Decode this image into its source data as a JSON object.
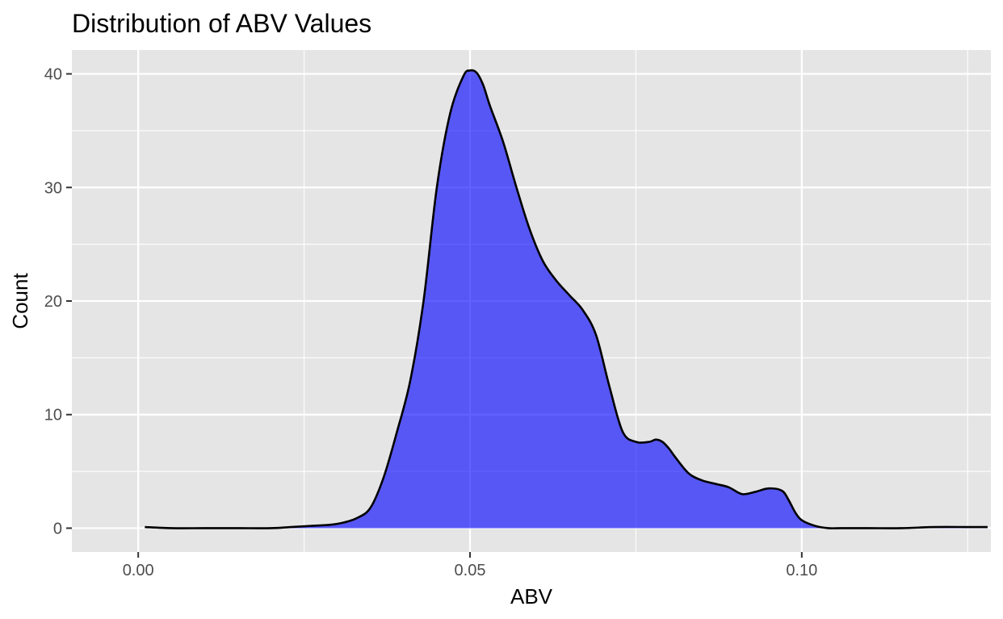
{
  "chart_data": {
    "type": "area",
    "title": "Distribution of ABV Values",
    "xlabel": "ABV",
    "ylabel": "Count",
    "xlim": [
      -0.01,
      0.1285
    ],
    "ylim": [
      -2.1,
      42.1
    ],
    "x_ticks": [
      0.0,
      0.05,
      0.1
    ],
    "x_tick_labels": [
      "0.00",
      "0.05",
      "0.10"
    ],
    "y_ticks": [
      0,
      10,
      20,
      30,
      40
    ],
    "y_tick_labels": [
      "0",
      "10",
      "20",
      "30",
      "40"
    ],
    "x_minor_ticks": [
      0.025,
      0.075,
      0.125
    ],
    "y_minor_ticks": [
      5,
      15,
      25,
      35
    ],
    "grid": true,
    "legend": "none",
    "colors": {
      "fill": "#0000ff",
      "fill_opacity": 0.62,
      "line": "#000000",
      "panel": "#e5e5e5",
      "grid": "#ffffff"
    },
    "series": [
      {
        "x": [
          0.001,
          0.005,
          0.01,
          0.015,
          0.02,
          0.023,
          0.026,
          0.029,
          0.031,
          0.033,
          0.035,
          0.037,
          0.039,
          0.041,
          0.043,
          0.045,
          0.047,
          0.049,
          0.05,
          0.051,
          0.052,
          0.053,
          0.055,
          0.057,
          0.059,
          0.061,
          0.063,
          0.065,
          0.067,
          0.069,
          0.071,
          0.073,
          0.075,
          0.077,
          0.078,
          0.079,
          0.08,
          0.081,
          0.083,
          0.085,
          0.087,
          0.089,
          0.091,
          0.093,
          0.095,
          0.097,
          0.098,
          0.099,
          0.1,
          0.102,
          0.104,
          0.106,
          0.11,
          0.115,
          0.12,
          0.125,
          0.128
        ],
        "values": [
          0.1,
          0.0,
          0.0,
          0.0,
          0.0,
          0.1,
          0.2,
          0.3,
          0.5,
          0.9,
          1.8,
          4.5,
          8.5,
          13.0,
          20.0,
          30.0,
          36.5,
          39.8,
          40.3,
          40.1,
          39.0,
          37.2,
          34.0,
          30.0,
          26.3,
          23.5,
          21.8,
          20.5,
          19.2,
          17.0,
          12.5,
          8.5,
          7.6,
          7.6,
          7.8,
          7.6,
          7.0,
          6.2,
          4.8,
          4.2,
          3.9,
          3.6,
          3.0,
          3.2,
          3.5,
          3.3,
          2.5,
          1.4,
          0.7,
          0.2,
          0.0,
          0.0,
          0.0,
          0.0,
          0.1,
          0.1,
          0.1
        ]
      }
    ]
  }
}
